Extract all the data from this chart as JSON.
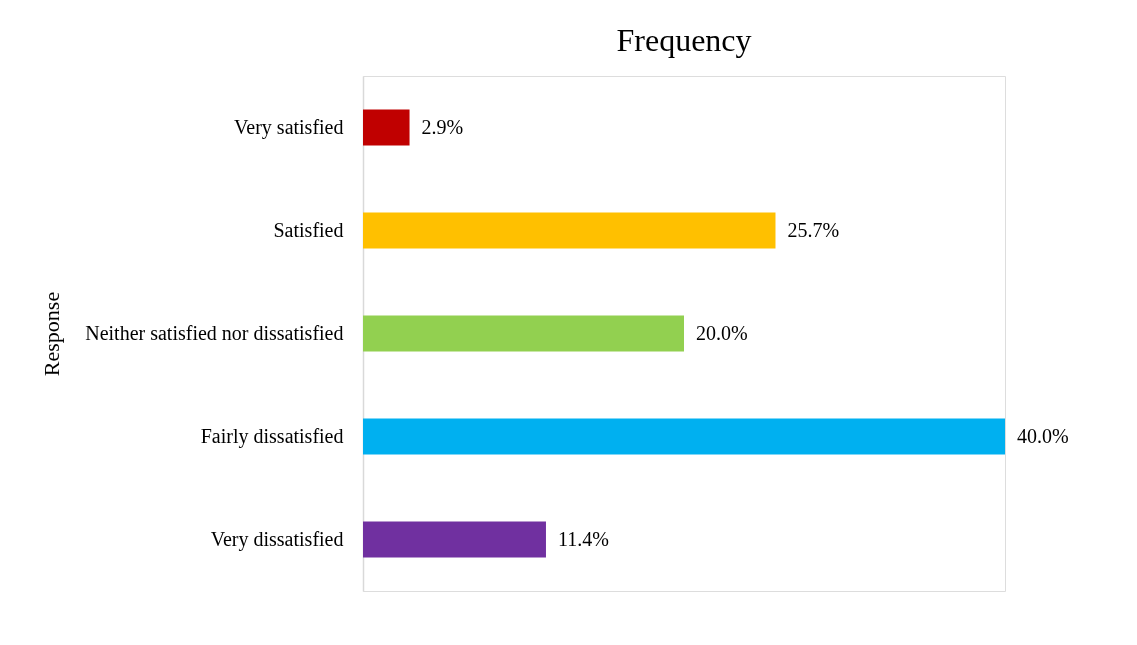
{
  "chart_data": {
    "type": "bar",
    "orientation": "horizontal",
    "title": "Frequency",
    "ylabel": "Response",
    "categories": [
      "Very satisfied",
      "Satisfied",
      "Neither satisfied nor dissatisfied",
      "Fairly dissatisfied",
      "Very dissatisfied"
    ],
    "values": [
      2.9,
      25.7,
      20.0,
      40.0,
      11.4
    ],
    "colors": [
      "#c00000",
      "#ffc000",
      "#92d050",
      "#00b0f0",
      "#7030a0"
    ],
    "value_labels": [
      "2.9%",
      "25.7%",
      "20.0%",
      "40.0%",
      "11.4%"
    ],
    "grid": false
  }
}
